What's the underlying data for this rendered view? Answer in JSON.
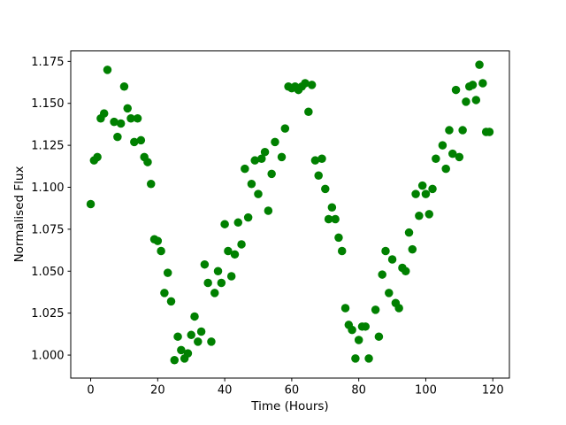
{
  "figure": {
    "background": "#ffffff",
    "xlabel": "Time (Hours)",
    "ylabel": "Normalised Flux"
  },
  "chart_data": {
    "type": "scatter",
    "title": "",
    "xlabel": "Time (Hours)",
    "ylabel": "Normalised Flux",
    "legend": "none",
    "grid": false,
    "marker_color": "#008000",
    "marker_diameter_px": 9.5,
    "axis_color": "#000000",
    "xlim": [
      -5.95,
      124.95
    ],
    "ylim": [
      0.9862,
      1.1812
    ],
    "x_ticks": [
      0,
      20,
      40,
      60,
      80,
      100,
      120
    ],
    "x_tick_labels": [
      "0",
      "20",
      "40",
      "60",
      "80",
      "100",
      "120"
    ],
    "y_ticks": [
      1.0,
      1.025,
      1.05,
      1.075,
      1.1,
      1.125,
      1.15,
      1.175
    ],
    "y_tick_labels": [
      "1.000",
      "1.025",
      "1.050",
      "1.075",
      "1.100",
      "1.125",
      "1.150",
      "1.175"
    ],
    "x": [
      0,
      1,
      2,
      3,
      4,
      5,
      7,
      8,
      9,
      10,
      11,
      12,
      13,
      14,
      15,
      16,
      17,
      18,
      19,
      20,
      21,
      22,
      23,
      24,
      25,
      26,
      27,
      28,
      29,
      30,
      31,
      32,
      33,
      34,
      35,
      36,
      37,
      38,
      39,
      40,
      41,
      42,
      43,
      44,
      45,
      46,
      47,
      48,
      49,
      50,
      51,
      52,
      53,
      54,
      55,
      57,
      58,
      59,
      60,
      61,
      62,
      63,
      64,
      65,
      66,
      67,
      68,
      69,
      70,
      71,
      72,
      73,
      74,
      75,
      76,
      77,
      78,
      79,
      80,
      81,
      82,
      83,
      85,
      86,
      87,
      88,
      89,
      90,
      91,
      92,
      93,
      94,
      95,
      96,
      97,
      98,
      99,
      100,
      101,
      102,
      103,
      105,
      106,
      107,
      108,
      109,
      110,
      111,
      112,
      113,
      114,
      115,
      116,
      117,
      118,
      119
    ],
    "y": [
      1.09,
      1.116,
      1.118,
      1.141,
      1.144,
      1.17,
      1.139,
      1.13,
      1.138,
      1.16,
      1.147,
      1.141,
      1.127,
      1.141,
      1.128,
      1.118,
      1.115,
      1.102,
      1.069,
      1.068,
      1.062,
      1.037,
      1.049,
      1.032,
      0.997,
      1.011,
      1.003,
      0.998,
      1.001,
      1.012,
      1.023,
      1.008,
      1.014,
      1.054,
      1.043,
      1.008,
      1.037,
      1.05,
      1.043,
      1.078,
      1.062,
      1.047,
      1.06,
      1.079,
      1.066,
      1.111,
      1.082,
      1.102,
      1.116,
      1.096,
      1.117,
      1.121,
      1.086,
      1.108,
      1.127,
      1.118,
      1.135,
      1.16,
      1.159,
      1.16,
      1.158,
      1.16,
      1.162,
      1.145,
      1.161,
      1.116,
      1.107,
      1.117,
      1.099,
      1.081,
      1.088,
      1.081,
      1.07,
      1.062,
      1.028,
      1.018,
      1.015,
      0.998,
      1.009,
      1.017,
      1.017,
      0.998,
      1.027,
      1.011,
      1.048,
      1.062,
      1.037,
      1.057,
      1.031,
      1.028,
      1.052,
      1.05,
      1.073,
      1.063,
      1.096,
      1.083,
      1.101,
      1.096,
      1.084,
      1.099,
      1.117,
      1.125,
      1.111,
      1.134,
      1.12,
      1.158,
      1.118,
      1.134,
      1.151,
      1.16,
      1.161,
      1.152,
      1.173,
      1.162,
      1.133,
      1.133
    ]
  }
}
